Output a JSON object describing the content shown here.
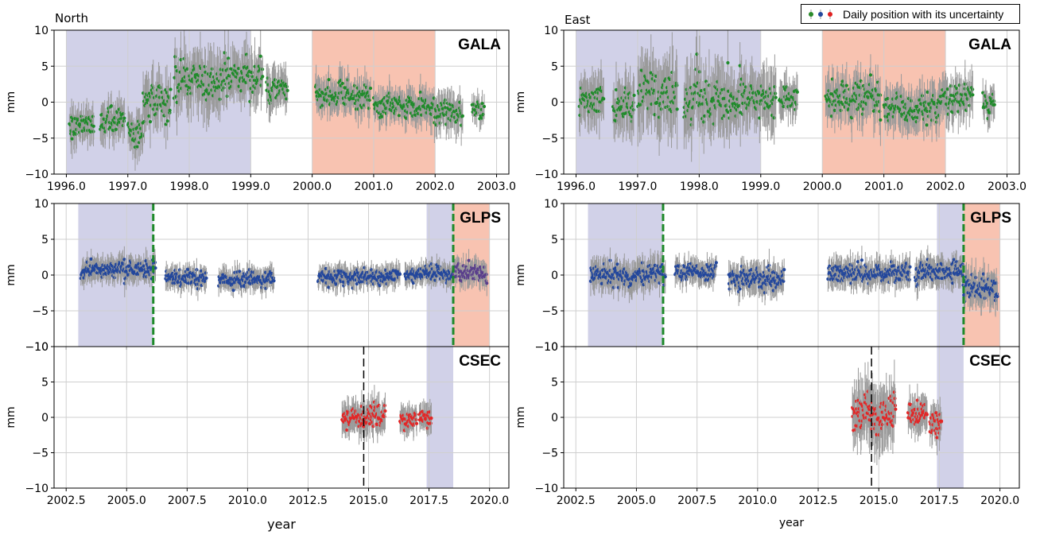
{
  "titles": {
    "north": "North",
    "east": "East"
  },
  "legend": {
    "label": "Daily position with its uncertainty",
    "colors": [
      "#2a8a2a",
      "#23479c",
      "#e02020"
    ]
  },
  "colors": {
    "gala": "#1f8b2a",
    "glps": "#23479c",
    "csec": "#e32626",
    "overlap": "#5a3f8c",
    "error": "#9a9a9a",
    "blueShade": "#c9c9e4",
    "orangeShade": "#f7b9a3",
    "greenDash": "#1e8a2a"
  },
  "chart_data": [
    {
      "type": "scatter",
      "panel": "north-gala",
      "label": "GALA",
      "ylabel": "mm",
      "xlim": [
        1995.8,
        2003.2
      ],
      "ylim": [
        -10,
        10
      ],
      "xticks": [
        1996.0,
        1997.0,
        1998.0,
        1999.0,
        2000.0,
        2001.0,
        2002.0,
        2003.0
      ],
      "yticks": [
        -10,
        -5,
        0,
        5,
        10
      ],
      "xtick_labels": [
        "1996.0",
        "1997.0",
        "1998.0",
        "1999.0",
        "2000.0",
        "2001.0",
        "2002.0",
        "2003.0"
      ],
      "ytick_labels": [
        "−10",
        "−5",
        "0",
        "5",
        "10"
      ],
      "shades": [
        {
          "x0": 1996.0,
          "x1": 1999.0,
          "color": "blue"
        },
        {
          "x0": 2000.0,
          "x1": 2002.0,
          "color": "orange"
        }
      ],
      "series": [
        {
          "color": "gala",
          "segments": [
            {
              "x0": 1996.05,
              "x1": 1996.45,
              "mean": -3,
              "sd": 1.3
            },
            {
              "x0": 1996.55,
              "x1": 1996.95,
              "mean": -2.5,
              "sd": 1.4
            },
            {
              "x0": 1997.0,
              "x1": 1997.25,
              "mean": -4,
              "sd": 1.5
            },
            {
              "x0": 1997.25,
              "x1": 1997.7,
              "mean": 0.5,
              "sd": 1.8
            },
            {
              "x0": 1997.75,
              "x1": 1998.5,
              "mean": 3,
              "sd": 2.2
            },
            {
              "x0": 1998.5,
              "x1": 1999.2,
              "mean": 3.5,
              "sd": 1.9
            },
            {
              "x0": 1999.25,
              "x1": 1999.6,
              "mean": 2,
              "sd": 1.5
            },
            {
              "x0": 2000.05,
              "x1": 2000.95,
              "mean": 0.8,
              "sd": 1.3
            },
            {
              "x0": 2001.0,
              "x1": 2001.9,
              "mean": -0.5,
              "sd": 1.2
            },
            {
              "x0": 2001.9,
              "x1": 2002.45,
              "mean": -1.2,
              "sd": 1.4
            },
            {
              "x0": 2002.6,
              "x1": 2002.8,
              "mean": -1,
              "sd": 1.0
            }
          ]
        }
      ]
    },
    {
      "type": "scatter",
      "panel": "east-gala",
      "label": "GALA",
      "ylabel": "mm",
      "xlim": [
        1995.8,
        2003.2
      ],
      "ylim": [
        -10,
        10
      ],
      "xticks": [
        1996.0,
        1997.0,
        1998.0,
        1999.0,
        2000.0,
        2001.0,
        2002.0,
        2003.0
      ],
      "yticks": [
        -10,
        -5,
        0,
        5,
        10
      ],
      "xtick_labels": [
        "1996.0",
        "1997.0",
        "1998.0",
        "1999.0",
        "2000.0",
        "2001.0",
        "2002.0",
        "2003.0"
      ],
      "ytick_labels": [
        "−10",
        "−5",
        "0",
        "5",
        "10"
      ],
      "shades": [
        {
          "x0": 1996.0,
          "x1": 1999.0,
          "color": "blue"
        },
        {
          "x0": 2000.0,
          "x1": 2002.0,
          "color": "orange"
        }
      ],
      "series": [
        {
          "color": "gala",
          "segments": [
            {
              "x0": 1996.05,
              "x1": 1996.45,
              "mean": 0.5,
              "sd": 1.8
            },
            {
              "x0": 1996.6,
              "x1": 1996.95,
              "mean": -0.5,
              "sd": 1.9
            },
            {
              "x0": 1997.0,
              "x1": 1997.65,
              "mean": 1,
              "sd": 2.6
            },
            {
              "x0": 1997.75,
              "x1": 1998.5,
              "mean": 0,
              "sd": 2.4
            },
            {
              "x0": 1998.5,
              "x1": 1999.25,
              "mean": 0.5,
              "sd": 2.2
            },
            {
              "x0": 1999.3,
              "x1": 1999.6,
              "mean": 0.5,
              "sd": 1.5
            },
            {
              "x0": 2000.05,
              "x1": 2000.95,
              "mean": 0.3,
              "sd": 1.7
            },
            {
              "x0": 2001.0,
              "x1": 2001.9,
              "mean": -1,
              "sd": 1.5
            },
            {
              "x0": 2001.9,
              "x1": 2002.45,
              "mean": 0.5,
              "sd": 1.6
            },
            {
              "x0": 2002.6,
              "x1": 2002.8,
              "mean": 0,
              "sd": 1.1
            }
          ]
        }
      ]
    },
    {
      "type": "scatter",
      "panel": "north-glps",
      "label": "GLPS",
      "ylabel": "mm",
      "xlim": [
        2002.0,
        2020.8
      ],
      "ylim": [
        -10,
        10
      ],
      "yticks": [
        -10,
        -5,
        0,
        5,
        10
      ],
      "ytick_labels": [
        "−10",
        "−5",
        "0",
        "5",
        "10"
      ],
      "xticks": [
        2002.5,
        2005.0,
        2007.5,
        2010.0,
        2012.5,
        2015.0,
        2017.5,
        2020.0
      ],
      "shades": [
        {
          "x0": 2003.0,
          "x1": 2006.1,
          "color": "blue"
        },
        {
          "x0": 2017.4,
          "x1": 2018.5,
          "color": "blue"
        },
        {
          "x0": 2018.5,
          "x1": 2020.0,
          "color": "orange"
        }
      ],
      "vlines": [
        {
          "x": 2006.1,
          "style": "green-dashed"
        },
        {
          "x": 2018.5,
          "style": "green-dashed"
        }
      ],
      "series": [
        {
          "color": "glps",
          "segments": [
            {
              "x0": 2003.1,
              "x1": 2006.2,
              "mean": 0.8,
              "sd": 0.9
            },
            {
              "x0": 2006.6,
              "x1": 2008.3,
              "mean": -0.5,
              "sd": 0.8
            },
            {
              "x0": 2008.8,
              "x1": 2011.1,
              "mean": -0.6,
              "sd": 0.8
            },
            {
              "x0": 2012.9,
              "x1": 2016.3,
              "mean": -0.3,
              "sd": 0.8
            },
            {
              "x0": 2016.5,
              "x1": 2018.5,
              "mean": 0.2,
              "sd": 0.8
            }
          ]
        },
        {
          "color": "overlap",
          "segments": [
            {
              "x0": 2018.5,
              "x1": 2019.9,
              "mean": 0.4,
              "sd": 0.9
            }
          ]
        }
      ]
    },
    {
      "type": "scatter",
      "panel": "east-glps",
      "label": "GLPS",
      "ylabel": "mm",
      "xlim": [
        2002.0,
        2020.8
      ],
      "ylim": [
        -10,
        10
      ],
      "yticks": [
        -10,
        -5,
        0,
        5,
        10
      ],
      "ytick_labels": [
        "−10",
        "−5",
        "0",
        "5",
        "10"
      ],
      "xticks": [
        2002.5,
        2005.0,
        2007.5,
        2010.0,
        2012.5,
        2015.0,
        2017.5,
        2020.0
      ],
      "shades": [
        {
          "x0": 2003.0,
          "x1": 2006.1,
          "color": "blue"
        },
        {
          "x0": 2017.4,
          "x1": 2018.5,
          "color": "blue"
        },
        {
          "x0": 2018.5,
          "x1": 2020.0,
          "color": "orange"
        }
      ],
      "vlines": [
        {
          "x": 2006.1,
          "style": "green-dashed"
        },
        {
          "x": 2018.5,
          "style": "green-dashed"
        }
      ],
      "series": [
        {
          "color": "glps",
          "segments": [
            {
              "x0": 2003.1,
              "x1": 2006.2,
              "mean": 0,
              "sd": 1.1
            },
            {
              "x0": 2006.6,
              "x1": 2008.3,
              "mean": 0.5,
              "sd": 0.9
            },
            {
              "x0": 2008.8,
              "x1": 2011.1,
              "mean": -0.5,
              "sd": 1.1
            },
            {
              "x0": 2012.9,
              "x1": 2016.3,
              "mean": 0.3,
              "sd": 1.0
            },
            {
              "x0": 2016.5,
              "x1": 2018.5,
              "mean": 0.5,
              "sd": 1.0
            },
            {
              "x0": 2018.5,
              "x1": 2019.9,
              "mean": -1.8,
              "sd": 1.3
            }
          ]
        }
      ]
    },
    {
      "type": "scatter",
      "panel": "north-csec",
      "label": "CSEC",
      "ylabel": "mm",
      "xlabel": "year",
      "xlim": [
        2002.0,
        2020.8
      ],
      "ylim": [
        -10,
        10
      ],
      "yticks": [
        -10,
        -5,
        0,
        5,
        10
      ],
      "ytick_labels": [
        "−10",
        "−5",
        "0",
        "5",
        "10"
      ],
      "xticks": [
        2002.5,
        2005.0,
        2007.5,
        2010.0,
        2012.5,
        2015.0,
        2017.5,
        2020.0
      ],
      "xtick_labels": [
        "2002.5",
        "2005.0",
        "2007.5",
        "2010.0",
        "2012.5",
        "2015.0",
        "2017.5",
        "2020.0"
      ],
      "shades": [
        {
          "x0": 2017.4,
          "x1": 2018.5,
          "color": "blue"
        }
      ],
      "vlines": [
        {
          "x": 2014.8,
          "style": "black-dashed"
        }
      ],
      "series": [
        {
          "color": "csec",
          "segments": [
            {
              "x0": 2013.9,
              "x1": 2015.7,
              "mean": 0,
              "sd": 1.2
            },
            {
              "x0": 2016.3,
              "x1": 2017.0,
              "mean": -0.3,
              "sd": 1.0
            },
            {
              "x0": 2017.1,
              "x1": 2017.6,
              "mean": 0,
              "sd": 1.0
            }
          ]
        }
      ]
    },
    {
      "type": "scatter",
      "panel": "east-csec",
      "label": "CSEC",
      "ylabel": "mm",
      "xlabel": "year",
      "xlim": [
        2002.0,
        2020.8
      ],
      "ylim": [
        -10,
        10
      ],
      "yticks": [
        -10,
        -5,
        0,
        5,
        10
      ],
      "ytick_labels": [
        "−10",
        "−5",
        "0",
        "5",
        "10"
      ],
      "xticks": [
        2002.5,
        2005.0,
        2007.5,
        2010.0,
        2012.5,
        2015.0,
        2017.5,
        2020.0
      ],
      "xtick_labels": [
        "2002.5",
        "2005.0",
        "2007.5",
        "2010.0",
        "2012.5",
        "2015.0",
        "2017.5",
        "2020.0"
      ],
      "shades": [
        {
          "x0": 2017.4,
          "x1": 2018.5,
          "color": "blue"
        }
      ],
      "vlines": [
        {
          "x": 2014.7,
          "style": "black-dashed"
        }
      ],
      "series": [
        {
          "color": "csec",
          "segments": [
            {
              "x0": 2013.9,
              "x1": 2015.7,
              "mean": 0.3,
              "sd": 2.2
            },
            {
              "x0": 2016.2,
              "x1": 2017.0,
              "mean": 0.5,
              "sd": 1.3
            },
            {
              "x0": 2017.1,
              "x1": 2017.6,
              "mean": -0.8,
              "sd": 1.2
            }
          ]
        }
      ]
    }
  ]
}
